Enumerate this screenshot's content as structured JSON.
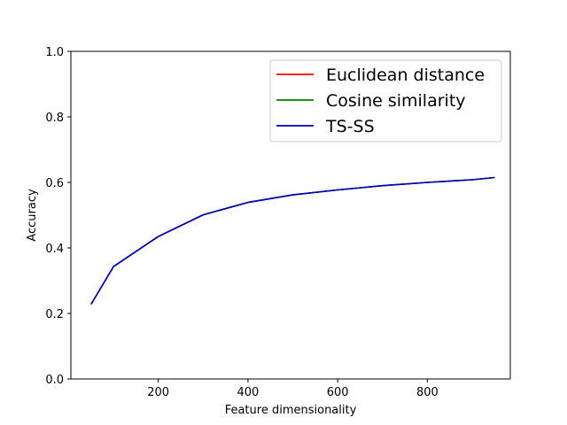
{
  "chart_data": {
    "type": "line",
    "title": "",
    "xlabel": "Feature dimensionality",
    "ylabel": "Accuracy",
    "xlim": [
      5,
      985
    ],
    "ylim": [
      0.0,
      1.0
    ],
    "xticks": [
      200,
      400,
      600,
      800
    ],
    "yticks": [
      0.0,
      0.2,
      0.4,
      0.6,
      0.8,
      1.0
    ],
    "xtick_labels": [
      "200",
      "400",
      "600",
      "800"
    ],
    "ytick_labels": [
      "0.0",
      "0.2",
      "0.4",
      "0.6",
      "0.8",
      "1.0"
    ],
    "grid": false,
    "legend_position": "top-right",
    "x": [
      50,
      100,
      200,
      300,
      400,
      500,
      600,
      700,
      800,
      900,
      950
    ],
    "series": [
      {
        "name": "Euclidean distance",
        "color": "#ff0000",
        "values": [
          0.228,
          0.343,
          0.435,
          0.501,
          0.539,
          0.562,
          0.577,
          0.59,
          0.6,
          0.608,
          0.615
        ]
      },
      {
        "name": "Cosine similarity",
        "color": "#008000",
        "values": [
          0.228,
          0.343,
          0.435,
          0.501,
          0.539,
          0.562,
          0.577,
          0.59,
          0.6,
          0.608,
          0.615
        ]
      },
      {
        "name": "TS-SS",
        "color": "#0000bf",
        "values": [
          0.228,
          0.343,
          0.435,
          0.501,
          0.539,
          0.562,
          0.577,
          0.59,
          0.6,
          0.608,
          0.615
        ]
      }
    ]
  }
}
